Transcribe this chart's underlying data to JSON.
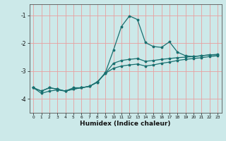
{
  "xlabel": "Humidex (Indice chaleur)",
  "bg_color": "#cce9e9",
  "grid_color": "#e8a0a0",
  "line_color": "#1a7070",
  "xlim": [
    -0.5,
    23.5
  ],
  "ylim": [
    -4.5,
    -0.6
  ],
  "yticks": [
    -4,
    -3,
    -2,
    -1
  ],
  "xticks": [
    0,
    1,
    2,
    3,
    4,
    5,
    6,
    7,
    8,
    9,
    10,
    11,
    12,
    13,
    14,
    15,
    16,
    17,
    18,
    19,
    20,
    21,
    22,
    23
  ],
  "line1_x": [
    0,
    1,
    2,
    3,
    4,
    5,
    6,
    7,
    8,
    9,
    10,
    11,
    12,
    13,
    14,
    15,
    16,
    17,
    18,
    19,
    20,
    21,
    22,
    23
  ],
  "line1_y": [
    -3.6,
    -3.8,
    -3.72,
    -3.68,
    -3.72,
    -3.6,
    -3.6,
    -3.55,
    -3.4,
    -3.05,
    -2.25,
    -1.4,
    -1.02,
    -1.15,
    -1.98,
    -2.12,
    -2.15,
    -1.95,
    -2.32,
    -2.45,
    -2.48,
    -2.45,
    -2.42,
    -2.42
  ],
  "line2_x": [
    0,
    1,
    2,
    3,
    4,
    5,
    6,
    7,
    8,
    9,
    10,
    11,
    12,
    13,
    14,
    15,
    16,
    17,
    18,
    19,
    20,
    21,
    22,
    23
  ],
  "line2_y": [
    -3.6,
    -3.72,
    -3.6,
    -3.65,
    -3.72,
    -3.65,
    -3.6,
    -3.55,
    -3.4,
    -3.08,
    -2.72,
    -2.62,
    -2.58,
    -2.55,
    -2.65,
    -2.62,
    -2.58,
    -2.55,
    -2.52,
    -2.5,
    -2.48,
    -2.45,
    -2.42,
    -2.4
  ],
  "line3_x": [
    0,
    1,
    2,
    3,
    4,
    5,
    6,
    7,
    8,
    9,
    10,
    11,
    12,
    13,
    14,
    15,
    16,
    17,
    18,
    19,
    20,
    21,
    22,
    23
  ],
  "line3_y": [
    -3.6,
    -3.72,
    -3.6,
    -3.65,
    -3.72,
    -3.65,
    -3.6,
    -3.55,
    -3.38,
    -3.08,
    -2.9,
    -2.82,
    -2.78,
    -2.75,
    -2.82,
    -2.78,
    -2.72,
    -2.68,
    -2.62,
    -2.58,
    -2.55,
    -2.52,
    -2.48,
    -2.45
  ]
}
